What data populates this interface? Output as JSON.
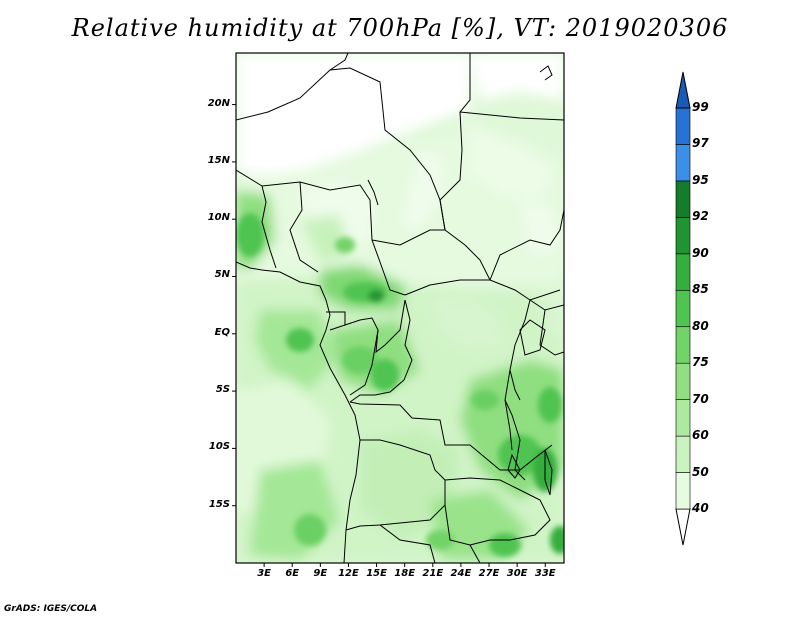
{
  "title": "Relative humidity at 700hPa [%], VT: 2019020306",
  "credit": "GrADS: IGES/COLA",
  "map": {
    "lat_ticks": [
      "20N",
      "15N",
      "10N",
      "5N",
      "EQ",
      "5S",
      "10S",
      "15S"
    ],
    "lon_ticks": [
      "3E",
      "6E",
      "9E",
      "12E",
      "15E",
      "18E",
      "21E",
      "24E",
      "27E",
      "30E",
      "33E"
    ],
    "domain": {
      "lon": [
        0,
        35
      ],
      "lat": [
        -20,
        24.5
      ]
    }
  },
  "colorbar": {
    "levels": [
      "40",
      "50",
      "60",
      "70",
      "75",
      "80",
      "85",
      "90",
      "92",
      "95",
      "97",
      "99"
    ],
    "colors": [
      "#ffffff",
      "#e6fce1",
      "#c9f4bf",
      "#adeaa0",
      "#91df82",
      "#72d368",
      "#50c451",
      "#36ae3e",
      "#219432",
      "#147c2a",
      "#3c8fe6",
      "#2872d6",
      "#1c5ab8"
    ]
  },
  "chart_data": {
    "type": "heatmap",
    "title": "Relative humidity at 700hPa [%], VT: 2019020306",
    "xlabel": "",
    "ylabel": "",
    "xlim": [
      0,
      35
    ],
    "ylim": [
      -20,
      24.5
    ],
    "units": "%",
    "contour_levels": [
      40,
      50,
      60,
      70,
      75,
      80,
      85,
      90,
      92,
      95,
      97,
      99
    ],
    "x_ticks": [
      "3E",
      "6E",
      "9E",
      "12E",
      "15E",
      "18E",
      "21E",
      "24E",
      "27E",
      "30E",
      "33E"
    ],
    "y_ticks": [
      "20N",
      "15N",
      "10N",
      "5N",
      "EQ",
      "5S",
      "10S",
      "15S"
    ]
  }
}
